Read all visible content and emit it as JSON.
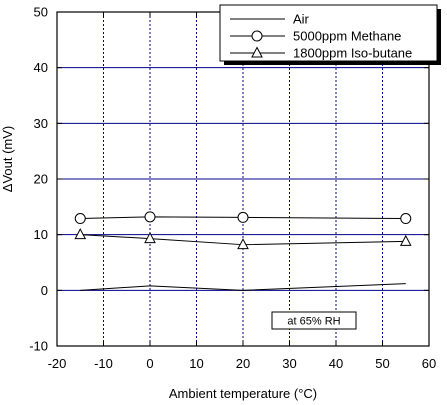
{
  "chart_data": {
    "type": "line",
    "title": "",
    "xlabel": "Ambient temperature (°C)",
    "ylabel": "ΔVout (mV)",
    "xlim": [
      -20,
      60
    ],
    "ylim": [
      -10,
      50
    ],
    "xticks": [
      -20,
      -10,
      0,
      10,
      20,
      30,
      40,
      50,
      60
    ],
    "yticks": [
      -10,
      0,
      10,
      20,
      30,
      40,
      50
    ],
    "grid": true,
    "grid_color": "#00008b",
    "legend_position": "top-right",
    "annotation": "at 65% RH",
    "series": [
      {
        "name": "Air",
        "marker": "none",
        "x": [
          -15,
          0,
          20,
          55
        ],
        "y": [
          0,
          0.8,
          0,
          1.2
        ]
      },
      {
        "name": "5000ppm Methane",
        "marker": "circle",
        "x": [
          -15,
          0,
          20,
          55
        ],
        "y": [
          12.9,
          13.2,
          13.1,
          12.9
        ]
      },
      {
        "name": "1800ppm Iso-butane",
        "marker": "triangle",
        "x": [
          -15,
          0,
          20,
          55
        ],
        "y": [
          10.0,
          9.3,
          8.2,
          8.8
        ]
      }
    ]
  }
}
